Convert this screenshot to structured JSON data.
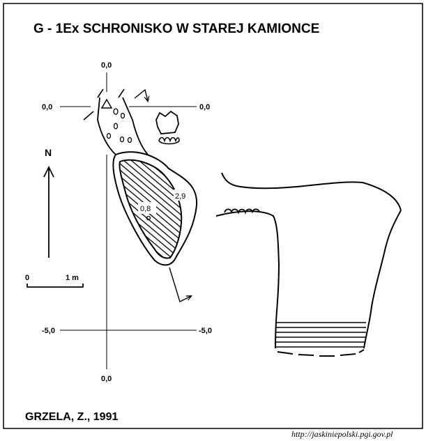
{
  "title": "G - 1Ex  SCHRONISKO W STAREJ KAMIONCE",
  "grid_labels": {
    "top": "0,0",
    "left_top": "0,0",
    "right_top": "0,0",
    "left_bottom": "-5,0",
    "right_bottom": "-5,0",
    "bottom": "0,0"
  },
  "north_label": "N",
  "scale": {
    "start": "0",
    "end": "1 m"
  },
  "depth_labels": [
    "0,8",
    "2,9"
  ],
  "author": "GRZELA, Z., 1991",
  "url": "http://jaskiniepolski.pgi.gov.pl"
}
